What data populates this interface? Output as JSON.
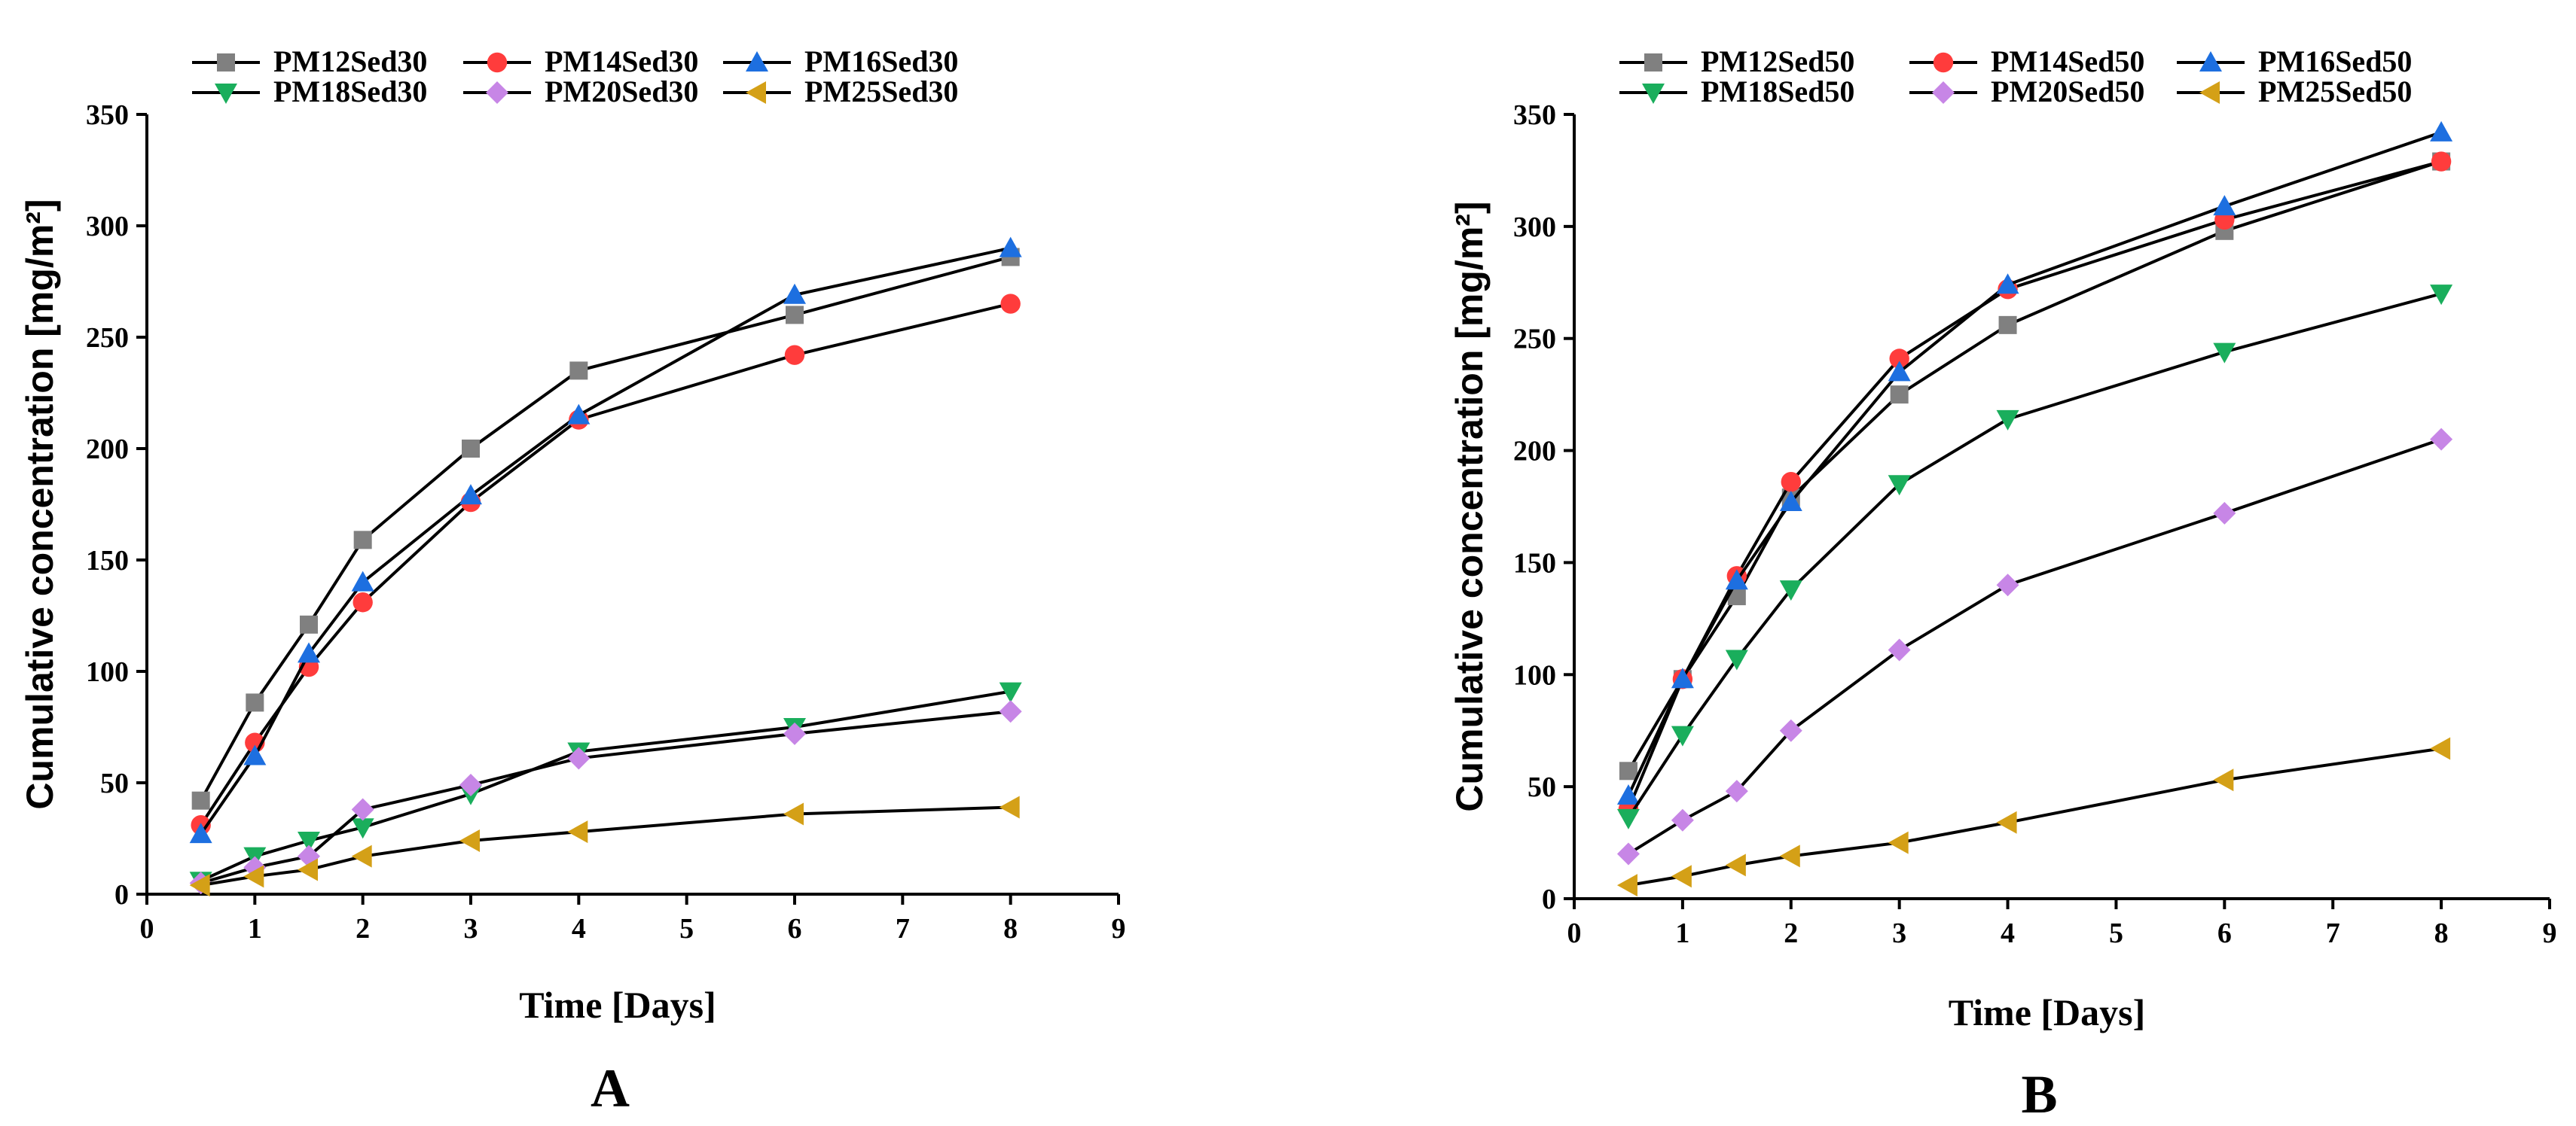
{
  "chart_data": [
    {
      "type": "line",
      "panel_label": "A",
      "xlabel": "Time [Days]",
      "ylabel": "Cumulative concentration [mg/m²]",
      "xlim": [
        0,
        9
      ],
      "ylim": [
        0,
        350
      ],
      "x_ticks": [
        0,
        1,
        2,
        3,
        4,
        5,
        6,
        7,
        8,
        9
      ],
      "y_ticks": [
        0,
        50,
        100,
        150,
        200,
        250,
        300,
        350
      ],
      "grid": false,
      "legend_position": "top",
      "x": [
        0.5,
        1,
        1.5,
        2,
        3,
        4,
        6,
        8
      ],
      "series": [
        {
          "name": "PM12Sed30",
          "marker": "square",
          "color": "#808080",
          "values": [
            42,
            86,
            121,
            159,
            200,
            235,
            260,
            286
          ]
        },
        {
          "name": "PM14Sed30",
          "marker": "circle",
          "color": "#ff3c3c",
          "values": [
            31,
            68,
            102,
            131,
            176,
            213,
            242,
            265
          ]
        },
        {
          "name": "PM16Sed30",
          "marker": "triangle-up",
          "color": "#1d6fe0",
          "values": [
            27,
            62,
            108,
            140,
            179,
            215,
            269,
            290
          ]
        },
        {
          "name": "PM18Sed30",
          "marker": "triangle-down",
          "color": "#1aae5c",
          "values": [
            6,
            17,
            24,
            30,
            45,
            64,
            75,
            91
          ]
        },
        {
          "name": "PM20Sed30",
          "marker": "diamond",
          "color": "#c786e6",
          "values": [
            5,
            12,
            17,
            38,
            49,
            61,
            72,
            82
          ]
        },
        {
          "name": "PM25Sed30",
          "marker": "triangle-left",
          "color": "#d4a017",
          "values": [
            4,
            8,
            11,
            17,
            24,
            28,
            36,
            39
          ]
        }
      ]
    },
    {
      "type": "line",
      "panel_label": "B",
      "xlabel": "Time [Days]",
      "ylabel": "Cumulative concentration [mg/m²]",
      "xlim": [
        0,
        9
      ],
      "ylim": [
        0,
        350
      ],
      "x_ticks": [
        0,
        1,
        2,
        3,
        4,
        5,
        6,
        7,
        8,
        9
      ],
      "y_ticks": [
        0,
        50,
        100,
        150,
        200,
        250,
        300,
        350
      ],
      "grid": false,
      "legend_position": "top",
      "x": [
        0.5,
        1,
        1.5,
        2,
        3,
        4,
        6,
        8
      ],
      "series": [
        {
          "name": "PM12Sed50",
          "marker": "square",
          "color": "#808080",
          "values": [
            57,
            98,
            135,
            179,
            225,
            256,
            298,
            329
          ]
        },
        {
          "name": "PM14Sed50",
          "marker": "circle",
          "color": "#ff3c3c",
          "values": [
            40,
            98,
            144,
            186,
            241,
            272,
            303,
            329
          ]
        },
        {
          "name": "PM16Sed50",
          "marker": "triangle-up",
          "color": "#1d6fe0",
          "values": [
            46,
            98,
            142,
            177,
            235,
            274,
            309,
            342
          ]
        },
        {
          "name": "PM18Sed50",
          "marker": "triangle-down",
          "color": "#1aae5c",
          "values": [
            36,
            73,
            107,
            138,
            185,
            214,
            244,
            270
          ]
        },
        {
          "name": "PM20Sed50",
          "marker": "diamond",
          "color": "#c786e6",
          "values": [
            20,
            35,
            48,
            75,
            111,
            140,
            172,
            205
          ]
        },
        {
          "name": "PM25Sed50",
          "marker": "triangle-left",
          "color": "#d4a017",
          "values": [
            6,
            10,
            15,
            19,
            25,
            34,
            53,
            67
          ]
        }
      ]
    }
  ]
}
